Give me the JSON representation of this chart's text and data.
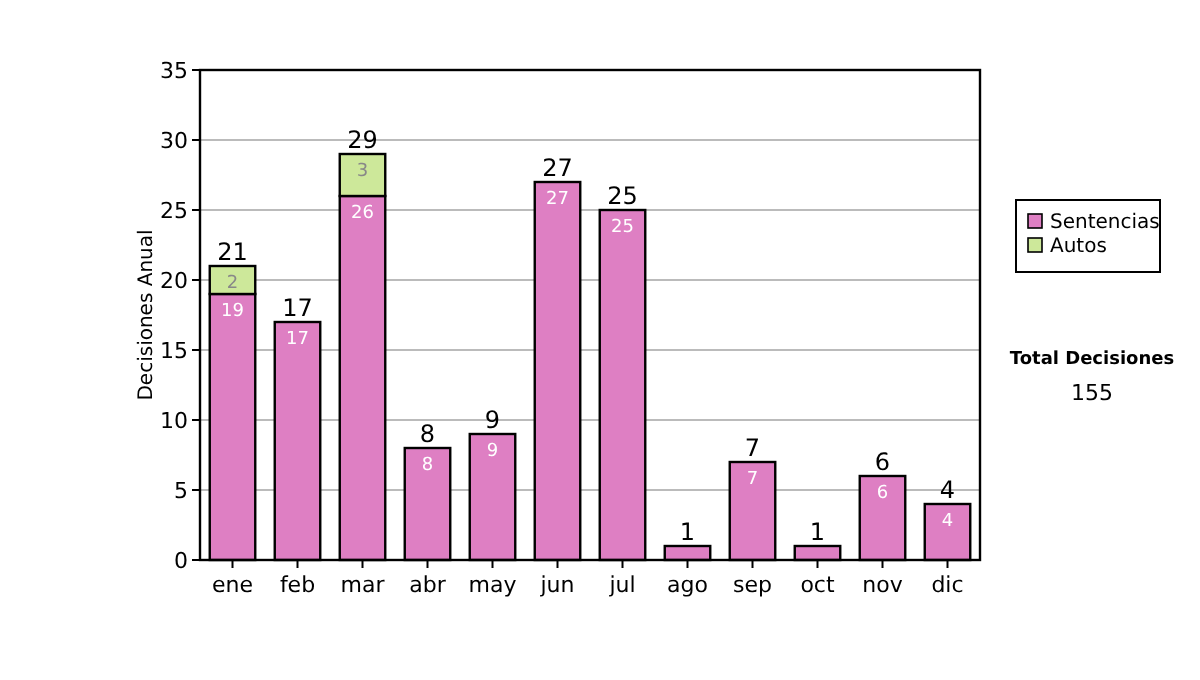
{
  "chart_data": {
    "type": "bar",
    "ylabel": "Decisiones Anual",
    "stacked": true,
    "categories": [
      "ene",
      "feb",
      "mar",
      "abr",
      "may",
      "jun",
      "jul",
      "ago",
      "sep",
      "oct",
      "nov",
      "dic"
    ],
    "series": [
      {
        "name": "Sentencias",
        "color": "#de7fc3",
        "values": [
          19,
          17,
          26,
          8,
          9,
          27,
          25,
          1,
          7,
          1,
          6,
          4
        ],
        "value_labels": [
          "19",
          "17",
          "26",
          "8",
          "9",
          "27",
          "25",
          null,
          "7",
          null,
          "6",
          "4"
        ]
      },
      {
        "name": "Autos",
        "color": "#cde89a",
        "values": [
          2,
          0,
          3,
          0,
          0,
          0,
          0,
          0,
          0,
          0,
          0,
          0
        ],
        "value_labels": [
          "2",
          null,
          "3",
          null,
          null,
          null,
          null,
          null,
          null,
          null,
          null,
          null
        ]
      }
    ],
    "totals": [
      "21",
      "17",
      "29",
      "8",
      "9",
      "27",
      "25",
      "1",
      "7",
      "1",
      "6",
      "4"
    ],
    "ylim": [
      0,
      35
    ],
    "yticks": [
      0,
      5,
      10,
      15,
      20,
      25,
      30,
      35
    ],
    "grid": "y",
    "legend": "right",
    "annotations": [
      "Total Decisiones",
      "155"
    ]
  }
}
